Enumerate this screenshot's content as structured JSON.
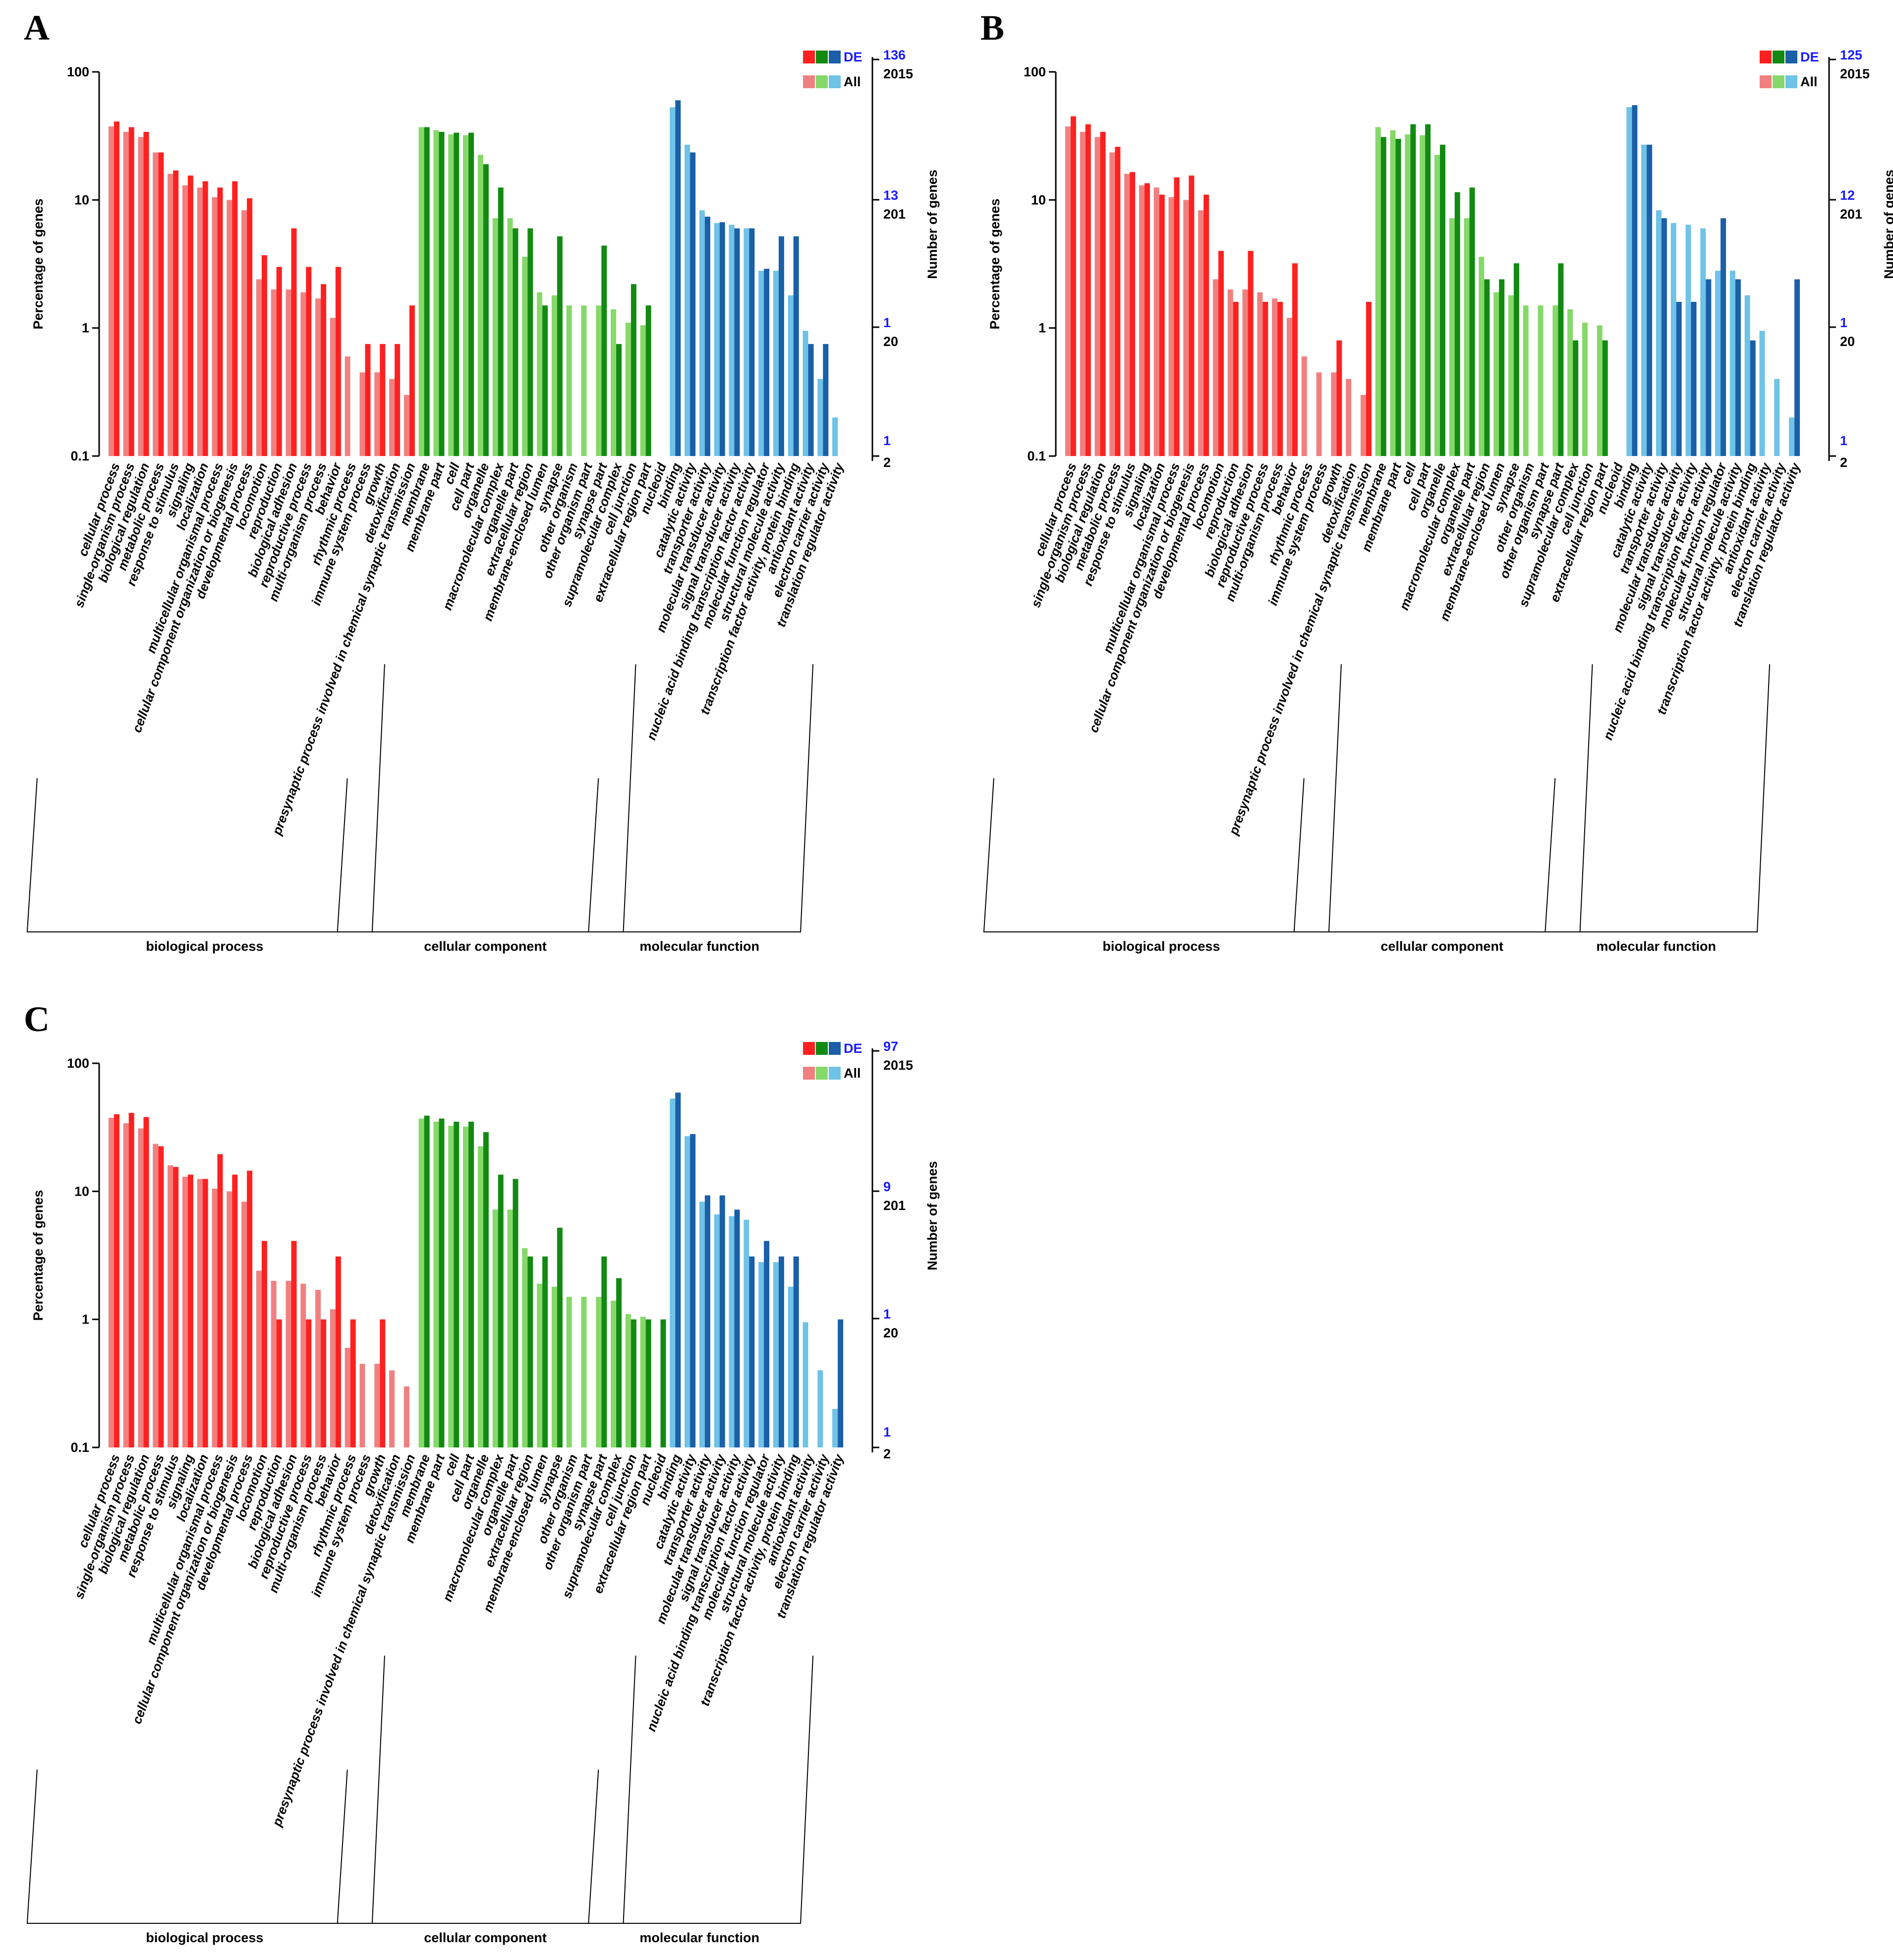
{
  "chart_data": [
    {
      "panel": "A",
      "type": "bar",
      "scale": "log",
      "ylabel": "Percentage of genes",
      "ylabel_right": "Number of genes",
      "y_ticks": [
        "100",
        "10",
        "1",
        "0.1"
      ],
      "ylim": [
        0.1,
        100
      ],
      "right_ticks": {
        "de": [
          "136",
          "13",
          "1",
          "1"
        ],
        "all": [
          "2015",
          "201",
          "20",
          "2"
        ]
      },
      "legend": {
        "de": "DE",
        "all": "All"
      },
      "colors": {
        "biological process": {
          "de": "#ff2020",
          "all": "#f08080"
        },
        "cellular component": {
          "de": "#128a12",
          "all": "#86d86a"
        },
        "molecular function": {
          "de": "#1a5fa8",
          "all": "#6ec3e6"
        }
      },
      "group_labels": [
        "biological process",
        "cellular component",
        "molecular function"
      ],
      "categories": [
        "cellular process",
        "single-organism process",
        "biological regulation",
        "metabolic process",
        "response to stimulus",
        "signaling",
        "localization",
        "multicellular organismal process",
        "cellular component organization or biogenesis",
        "developmental process",
        "locomotion",
        "reproduction",
        "biological adhesion",
        "reproductive process",
        "multi-organism process",
        "behavior",
        "rhythmic process",
        "immune system process",
        "growth",
        "detoxification",
        "presynaptic process involved in chemical synaptic transmission",
        "membrane",
        "membrane part",
        "cell",
        "cell part",
        "organelle",
        "macromolecular complex",
        "organelle part",
        "extracellular region",
        "membrane-enclosed lumen",
        "synapse",
        "other organism",
        "other organism part",
        "synapse part",
        "supramolecular complex",
        "cell junction",
        "extracellular region part",
        "nucleoid",
        "binding",
        "catalytic activity",
        "transporter activity",
        "molecular transducer activity",
        "signal transducer activity",
        "nucleic acid binding transcription factor activity",
        "molecular function regulator",
        "structural molecule activity",
        "transcription factor activity, protein binding",
        "antioxidant activity",
        "electron carrier activity",
        "translation regulator activity"
      ],
      "groups": [
        "biological process",
        "biological process",
        "biological process",
        "biological process",
        "biological process",
        "biological process",
        "biological process",
        "biological process",
        "biological process",
        "biological process",
        "biological process",
        "biological process",
        "biological process",
        "biological process",
        "biological process",
        "biological process",
        "biological process",
        "biological process",
        "biological process",
        "biological process",
        "biological process",
        "cellular component",
        "cellular component",
        "cellular component",
        "cellular component",
        "cellular component",
        "cellular component",
        "cellular component",
        "cellular component",
        "cellular component",
        "cellular component",
        "cellular component",
        "cellular component",
        "cellular component",
        "cellular component",
        "cellular component",
        "cellular component",
        "cellular component",
        "molecular function",
        "molecular function",
        "molecular function",
        "molecular function",
        "molecular function",
        "molecular function",
        "molecular function",
        "molecular function",
        "molecular function",
        "molecular function",
        "molecular function",
        "molecular function"
      ],
      "series": [
        {
          "name": "All",
          "values": [
            37.5,
            34,
            31,
            23.5,
            16,
            13,
            12.5,
            10.5,
            10,
            8.3,
            2.4,
            2,
            2,
            1.9,
            1.7,
            1.2,
            0.6,
            0.45,
            0.45,
            0.4,
            0.3,
            37,
            35,
            32.5,
            32,
            22.5,
            7.2,
            7.2,
            3.6,
            1.9,
            1.8,
            1.5,
            1.5,
            1.5,
            1.4,
            1.1,
            1.05,
            0,
            53,
            27,
            8.3,
            6.6,
            6.4,
            6,
            2.8,
            2.8,
            1.8,
            0.95,
            0.4,
            0.2
          ]
        },
        {
          "name": "DE",
          "values": [
            41,
            37,
            34,
            23.5,
            17,
            15.5,
            14,
            12.5,
            14,
            10.3,
            3.7,
            3,
            6,
            3,
            2.2,
            3,
            0,
            0.75,
            0.75,
            0.75,
            1.5,
            37,
            34,
            33.5,
            33.5,
            19,
            12.5,
            6,
            6,
            1.5,
            5.2,
            0,
            0,
            4.4,
            0.75,
            2.2,
            1.5,
            0,
            60,
            23.5,
            7.4,
            6.7,
            6,
            6,
            2.9,
            5.2,
            5.2,
            0.75,
            0.75,
            0
          ]
        }
      ]
    },
    {
      "panel": "B",
      "type": "bar",
      "scale": "log",
      "ylabel": "Percentage of genes",
      "ylabel_right": "Number of genes",
      "y_ticks": [
        "100",
        "10",
        "1",
        "0.1"
      ],
      "ylim": [
        0.1,
        100
      ],
      "right_ticks": {
        "de": [
          "125",
          "12",
          "1",
          "1"
        ],
        "all": [
          "2015",
          "201",
          "20",
          "2"
        ]
      },
      "legend": {
        "de": "DE",
        "all": "All"
      },
      "colors": {
        "biological process": {
          "de": "#ff2020",
          "all": "#f08080"
        },
        "cellular component": {
          "de": "#128a12",
          "all": "#86d86a"
        },
        "molecular function": {
          "de": "#1a5fa8",
          "all": "#6ec3e6"
        }
      },
      "group_labels": [
        "biological process",
        "cellular component",
        "molecular function"
      ],
      "categories": [
        "cellular process",
        "single-organism process",
        "biological regulation",
        "metabolic process",
        "response to stimulus",
        "signaling",
        "localization",
        "multicellular organismal process",
        "cellular component organization or biogenesis",
        "developmental process",
        "locomotion",
        "reproduction",
        "biological adhesion",
        "reproductive process",
        "multi-organism process",
        "behavior",
        "rhythmic process",
        "immune system process",
        "growth",
        "detoxification",
        "presynaptic process involved in chemical synaptic transmission",
        "membrane",
        "membrane part",
        "cell",
        "cell part",
        "organelle",
        "macromolecular complex",
        "organelle part",
        "extracellular region",
        "membrane-enclosed lumen",
        "synapse",
        "other organism",
        "other organism part",
        "synapse part",
        "supramolecular complex",
        "cell junction",
        "extracellular region part",
        "nucleoid",
        "binding",
        "catalytic activity",
        "transporter activity",
        "molecular transducer activity",
        "signal transducer activity",
        "nucleic acid binding transcription factor activity",
        "molecular function regulator",
        "structural molecule activity",
        "transcription factor activity, protein binding",
        "antioxidant activity",
        "electron carrier activity",
        "translation regulator activity"
      ],
      "groups": [
        "biological process",
        "biological process",
        "biological process",
        "biological process",
        "biological process",
        "biological process",
        "biological process",
        "biological process",
        "biological process",
        "biological process",
        "biological process",
        "biological process",
        "biological process",
        "biological process",
        "biological process",
        "biological process",
        "biological process",
        "biological process",
        "biological process",
        "biological process",
        "biological process",
        "cellular component",
        "cellular component",
        "cellular component",
        "cellular component",
        "cellular component",
        "cellular component",
        "cellular component",
        "cellular component",
        "cellular component",
        "cellular component",
        "cellular component",
        "cellular component",
        "cellular component",
        "cellular component",
        "cellular component",
        "cellular component",
        "cellular component",
        "molecular function",
        "molecular function",
        "molecular function",
        "molecular function",
        "molecular function",
        "molecular function",
        "molecular function",
        "molecular function",
        "molecular function",
        "molecular function",
        "molecular function",
        "molecular function"
      ],
      "series": [
        {
          "name": "All",
          "values": [
            37.5,
            34,
            31,
            23.5,
            16,
            13,
            12.5,
            10.5,
            10,
            8.3,
            2.4,
            2,
            2,
            1.9,
            1.7,
            1.2,
            0.6,
            0.45,
            0.45,
            0.4,
            0.3,
            37,
            35,
            32.5,
            32,
            22.5,
            7.2,
            7.2,
            3.6,
            1.9,
            1.8,
            1.5,
            1.5,
            1.5,
            1.4,
            1.1,
            1.05,
            0,
            53,
            27,
            8.3,
            6.6,
            6.4,
            6,
            2.8,
            2.8,
            1.8,
            0.95,
            0.4,
            0.2
          ]
        },
        {
          "name": "DE",
          "values": [
            45,
            39,
            34,
            26,
            16.5,
            13.5,
            11,
            15,
            15.5,
            11,
            4,
            1.6,
            4,
            1.6,
            1.6,
            3.2,
            0,
            0,
            0.8,
            0,
            1.6,
            31,
            30,
            39,
            39,
            27,
            11.5,
            12.5,
            2.4,
            2.4,
            3.2,
            0,
            0,
            3.2,
            0.8,
            0,
            0.8,
            0,
            55,
            27,
            7.2,
            1.6,
            1.6,
            2.4,
            7.2,
            2.4,
            0.8,
            0,
            0,
            2.4
          ]
        }
      ]
    },
    {
      "panel": "C",
      "type": "bar",
      "scale": "log",
      "ylabel": "Percentage of genes",
      "ylabel_right": "Number of genes",
      "y_ticks": [
        "100",
        "10",
        "1",
        "0.1"
      ],
      "ylim": [
        0.1,
        100
      ],
      "right_ticks": {
        "de": [
          "97",
          "9",
          "1",
          "1"
        ],
        "all": [
          "2015",
          "201",
          "20",
          "2"
        ]
      },
      "legend": {
        "de": "DE",
        "all": "All"
      },
      "colors": {
        "biological process": {
          "de": "#ff2020",
          "all": "#f08080"
        },
        "cellular component": {
          "de": "#128a12",
          "all": "#86d86a"
        },
        "molecular function": {
          "de": "#1a5fa8",
          "all": "#6ec3e6"
        }
      },
      "group_labels": [
        "biological process",
        "cellular component",
        "molecular function"
      ],
      "categories": [
        "cellular process",
        "single-organism process",
        "biological regulation",
        "metabolic process",
        "response to stimulus",
        "signaling",
        "localization",
        "multicellular organismal process",
        "cellular component organization or biogenesis",
        "developmental process",
        "locomotion",
        "reproduction",
        "biological adhesion",
        "reproductive process",
        "multi-organism process",
        "behavior",
        "rhythmic process",
        "immune system process",
        "growth",
        "detoxification",
        "presynaptic process involved in chemical synaptic transmission",
        "membrane",
        "membrane part",
        "cell",
        "cell part",
        "organelle",
        "macromolecular complex",
        "organelle part",
        "extracellular region",
        "membrane-enclosed lumen",
        "synapse",
        "other organism",
        "other organism part",
        "synapse part",
        "supramolecular complex",
        "cell junction",
        "extracellular region part",
        "nucleoid",
        "binding",
        "catalytic activity",
        "transporter activity",
        "molecular transducer activity",
        "signal transducer activity",
        "nucleic acid binding transcription factor activity",
        "molecular function regulator",
        "structural molecule activity",
        "transcription factor activity, protein binding",
        "antioxidant activity",
        "electron carrier activity",
        "translation regulator activity"
      ],
      "groups": [
        "biological process",
        "biological process",
        "biological process",
        "biological process",
        "biological process",
        "biological process",
        "biological process",
        "biological process",
        "biological process",
        "biological process",
        "biological process",
        "biological process",
        "biological process",
        "biological process",
        "biological process",
        "biological process",
        "biological process",
        "biological process",
        "biological process",
        "biological process",
        "biological process",
        "cellular component",
        "cellular component",
        "cellular component",
        "cellular component",
        "cellular component",
        "cellular component",
        "cellular component",
        "cellular component",
        "cellular component",
        "cellular component",
        "cellular component",
        "cellular component",
        "cellular component",
        "cellular component",
        "cellular component",
        "cellular component",
        "cellular component",
        "molecular function",
        "molecular function",
        "molecular function",
        "molecular function",
        "molecular function",
        "molecular function",
        "molecular function",
        "molecular function",
        "molecular function",
        "molecular function",
        "molecular function",
        "molecular function"
      ],
      "series": [
        {
          "name": "All",
          "values": [
            37.5,
            34,
            31,
            23.5,
            16,
            13,
            12.5,
            10.5,
            10,
            8.3,
            2.4,
            2,
            2,
            1.9,
            1.7,
            1.2,
            0.6,
            0.45,
            0.45,
            0.4,
            0.3,
            37,
            35,
            32.5,
            32,
            22.5,
            7.2,
            7.2,
            3.6,
            1.9,
            1.8,
            1.5,
            1.5,
            1.5,
            1.4,
            1.1,
            1.05,
            0,
            53,
            27,
            8.3,
            6.6,
            6.4,
            6,
            2.8,
            2.8,
            1.8,
            0.95,
            0.4,
            0.2
          ]
        },
        {
          "name": "DE",
          "values": [
            40,
            41,
            38,
            22.5,
            15.5,
            13.5,
            12.5,
            19.5,
            13.5,
            14.5,
            4.1,
            1,
            4.1,
            1,
            1,
            3.1,
            1,
            0,
            1,
            0,
            0,
            39,
            37,
            35,
            35,
            29,
            13.5,
            12.5,
            3.1,
            3.1,
            5.2,
            0,
            0,
            3.1,
            2.1,
            1,
            1,
            1,
            59,
            28,
            9.3,
            9.3,
            7.2,
            3.1,
            4.1,
            3.1,
            3.1,
            0,
            0,
            1
          ]
        }
      ]
    }
  ]
}
